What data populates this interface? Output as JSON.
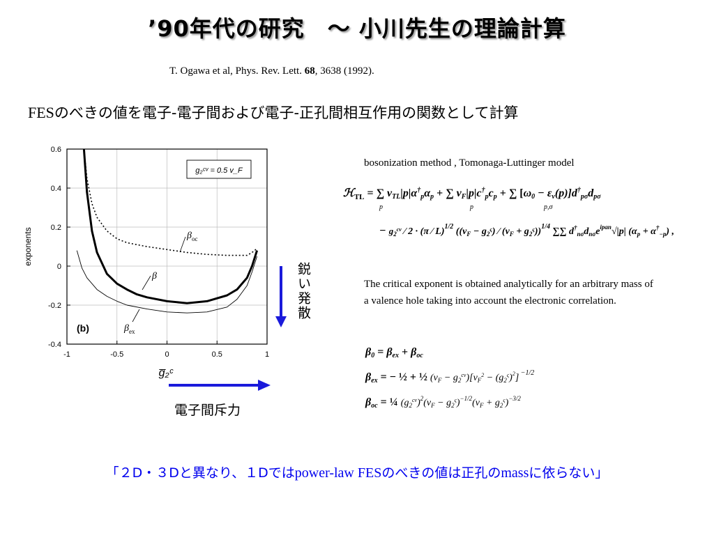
{
  "title": "’90年代の研究　～ 小川先生の理論計算",
  "reference": {
    "pre": "T. Ogawa et al, Phys. Rev. Lett. ",
    "vol": "68",
    "post": ", 3638 (1992)."
  },
  "subtitle": {
    "fes": "FES",
    "rest": "のべきの値を電子-電子間および電子-正孔間相互作用の関数として計算"
  },
  "method_text": "bosonization method , Tomonaga-Luttinger model",
  "critical_text": "The critical exponent is obtained analytically for an arbitrary mass of a valence hole taking into account the electronic correlation.",
  "arrow_labels": {
    "vertical": "鋭い発散",
    "horizontal": "電子間斥力"
  },
  "conclusion": {
    "p1": "「２D・３Dと異なり、１Dでは",
    "p2": "power-law FES",
    "p3": "のべきの値は正孔の",
    "p4": "mass",
    "p5": "に依らない」"
  },
  "colors": {
    "arrow": "#1a1adb",
    "conclusion": "#0000ee"
  },
  "chart_data": {
    "type": "line",
    "panel_label": "(b)",
    "ylabel": "exponents",
    "xlabel": "g̅₂ᶜ",
    "annotation": "g₂ᶜᵛ = 0.5 v_F",
    "xlim": [
      -1,
      1
    ],
    "ylim": [
      -0.4,
      0.6
    ],
    "xticks": [
      "-1",
      "-0.5",
      "0",
      "0.5",
      "1"
    ],
    "yticks": [
      "0.6",
      "0.4",
      "0.2",
      "0",
      "-0.2",
      "-0.4"
    ],
    "series": [
      {
        "name": "β_oc",
        "style": "dotted",
        "x": [
          -0.83,
          -0.8,
          -0.75,
          -0.7,
          -0.6,
          -0.5,
          -0.4,
          -0.3,
          -0.2,
          0,
          0.2,
          0.4,
          0.6,
          0.8,
          0.85,
          0.9
        ],
        "y": [
          0.6,
          0.45,
          0.32,
          0.25,
          0.18,
          0.14,
          0.12,
          0.11,
          0.1,
          0.085,
          0.07,
          0.06,
          0.055,
          0.055,
          0.07,
          0.09
        ]
      },
      {
        "name": "β",
        "style": "bold",
        "x": [
          -0.83,
          -0.8,
          -0.75,
          -0.7,
          -0.6,
          -0.5,
          -0.4,
          -0.3,
          -0.2,
          0,
          0.2,
          0.4,
          0.6,
          0.7,
          0.8,
          0.85,
          0.9
        ],
        "y": [
          0.6,
          0.38,
          0.18,
          0.07,
          -0.04,
          -0.09,
          -0.12,
          -0.145,
          -0.16,
          -0.18,
          -0.19,
          -0.18,
          -0.15,
          -0.12,
          -0.06,
          0.0,
          0.08
        ]
      },
      {
        "name": "β_ex",
        "style": "thin",
        "x": [
          -0.9,
          -0.85,
          -0.8,
          -0.7,
          -0.6,
          -0.5,
          -0.4,
          -0.2,
          0,
          0.2,
          0.4,
          0.6,
          0.7,
          0.8,
          0.85,
          0.9
        ],
        "y": [
          0.08,
          -0.01,
          -0.06,
          -0.12,
          -0.155,
          -0.18,
          -0.2,
          -0.22,
          -0.235,
          -0.24,
          -0.235,
          -0.21,
          -0.17,
          -0.1,
          -0.03,
          0.05
        ]
      }
    ]
  }
}
